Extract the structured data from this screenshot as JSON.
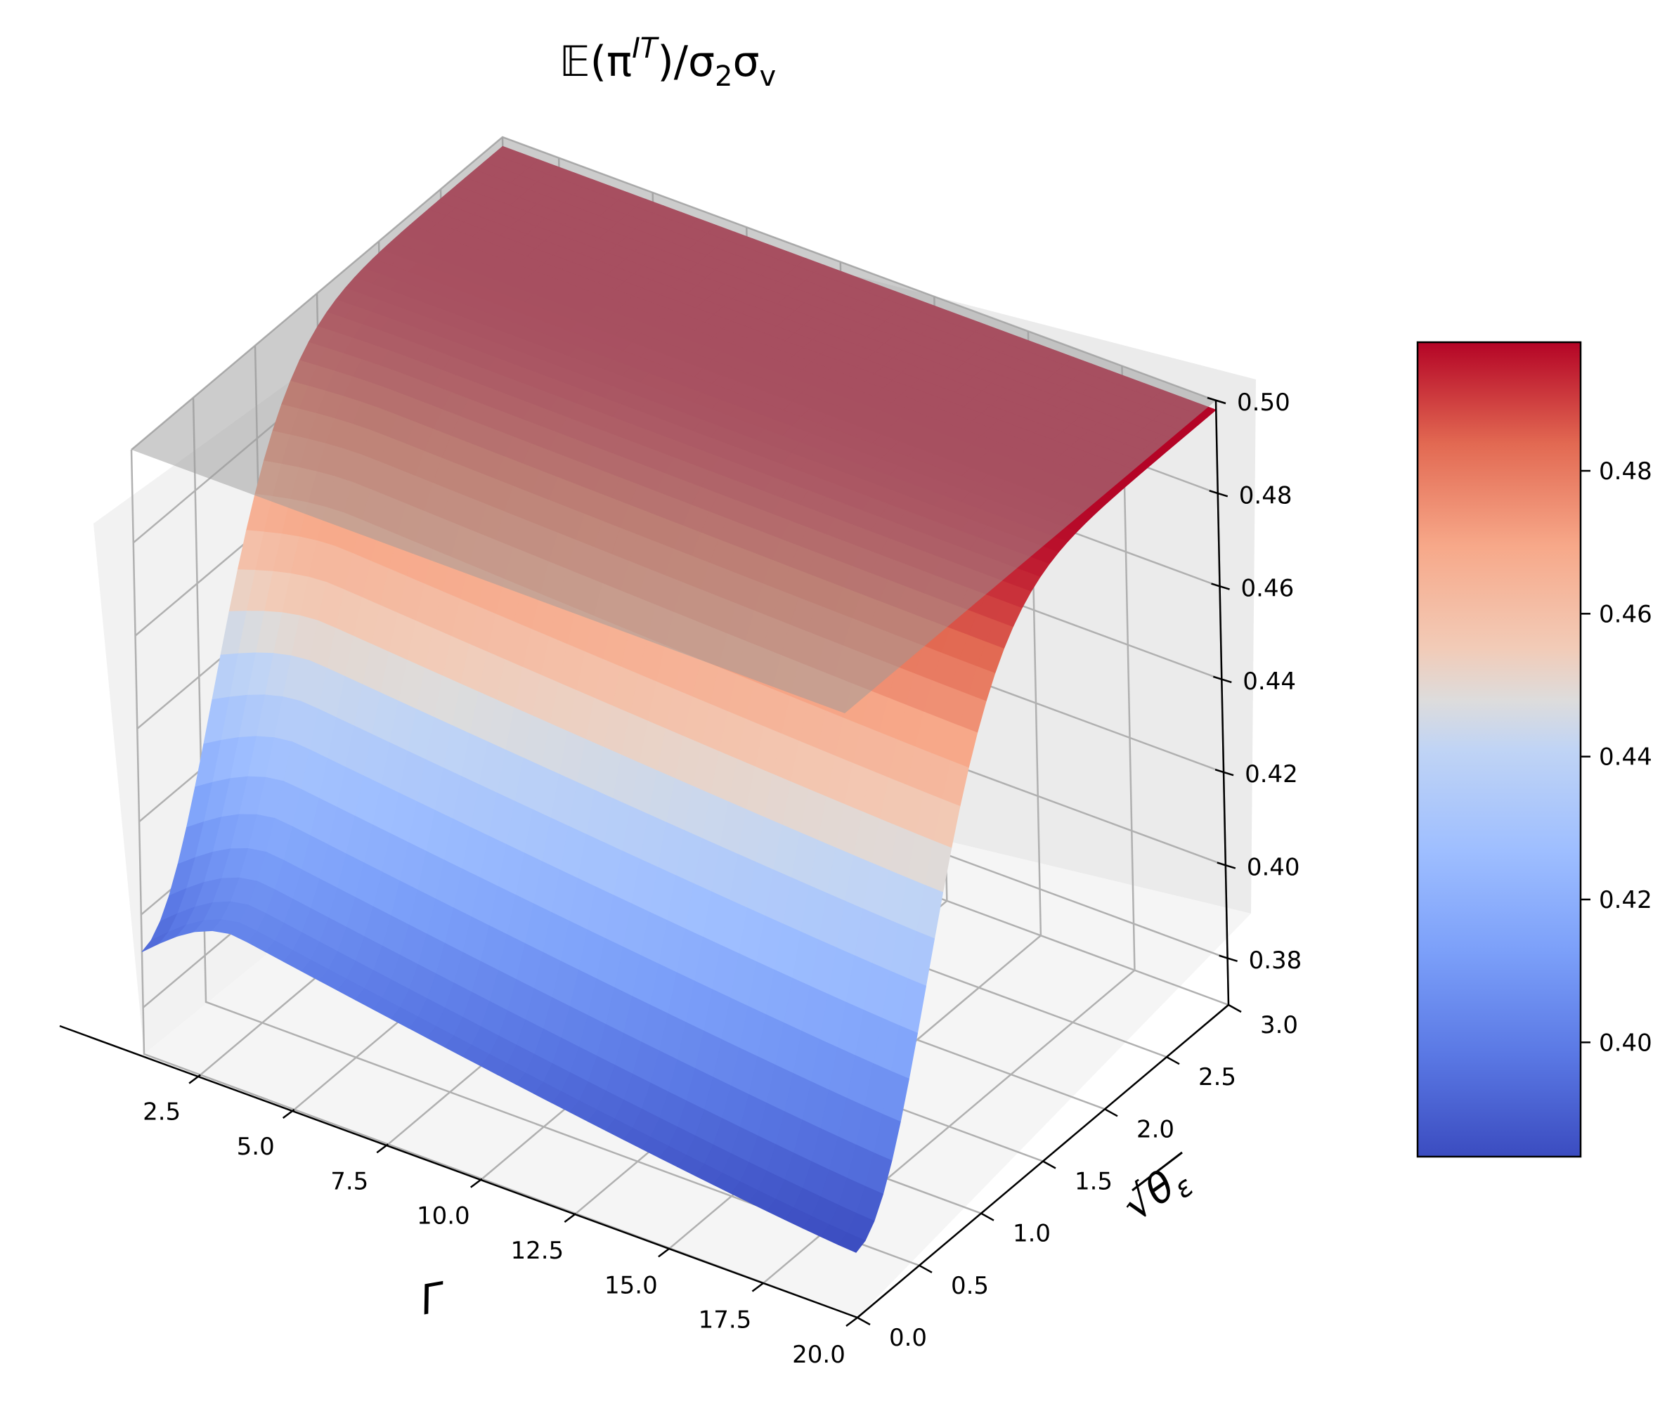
{
  "chart_data": {
    "type": "surface3d",
    "title": "𝔼(π^IT)/σ₂σ_v",
    "title_parts": {
      "prefix": "𝔼(π",
      "superscript": "IT",
      "middle": ")/σ",
      "sub1": "2",
      "sigma2": "σ",
      "sub2": "v"
    },
    "xlabel": "Γ",
    "ylabel": "√θε",
    "ylabel_parts": {
      "radical": "√",
      "theta": "θ",
      "epsilon": "ε"
    },
    "zlabel": "",
    "xlim": [
      1,
      20
    ],
    "ylim": [
      0,
      3
    ],
    "zlim": [
      0.37,
      0.5
    ],
    "x_ticks": [
      "2.5",
      "5.0",
      "7.5",
      "10.0",
      "12.5",
      "15.0",
      "17.5",
      "20.0"
    ],
    "y_ticks": [
      "0.0",
      "0.5",
      "1.0",
      "1.5",
      "2.0",
      "2.5",
      "3.0"
    ],
    "z_ticks": [
      "0.38",
      "0.40",
      "0.42",
      "0.44",
      "0.46",
      "0.48",
      "0.50"
    ],
    "surface": {
      "colormap": "coolwarm",
      "corner_values": {
        "gamma_1_theta_0": 0.392,
        "gamma_20_theta_0": 0.384,
        "gamma_1_theta_3": 0.498,
        "gamma_20_theta_3": 0.498
      },
      "ridge_peak_gamma": 3.5,
      "ridge_peak_value_theta_0": 0.403
    },
    "reference_plane": {
      "z": 0.5,
      "color": "gray"
    },
    "colorbar": {
      "range": [
        0.384,
        0.498
      ],
      "ticks": [
        "0.40",
        "0.42",
        "0.44",
        "0.46",
        "0.48"
      ]
    },
    "grid": true
  }
}
